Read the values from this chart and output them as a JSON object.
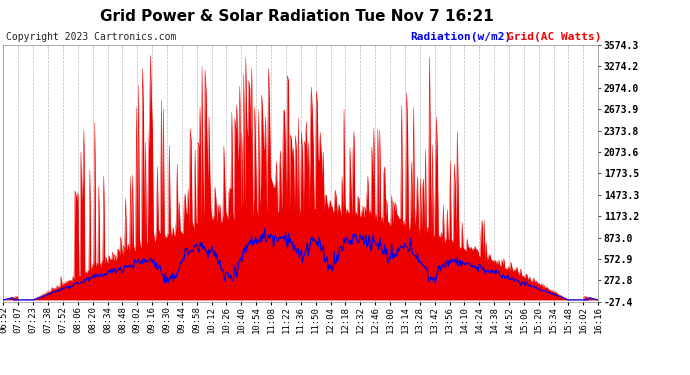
{
  "title": "Grid Power & Solar Radiation Tue Nov 7 16:21",
  "copyright": "Copyright 2023 Cartronics.com",
  "legend_radiation": "Radiation(w/m2)",
  "legend_grid": "Grid(AC Watts)",
  "ylabel_right_values": [
    3574.3,
    3274.2,
    2974.0,
    2673.9,
    2373.8,
    2073.6,
    1773.5,
    1473.3,
    1173.2,
    873.0,
    572.9,
    272.8,
    -27.4
  ],
  "ymin": -27.4,
  "ymax": 3574.3,
  "background_color": "#ffffff",
  "grid_color": "#bbbbbb",
  "radiation_color": "#0000ee",
  "grid_fill_color": "#ee0000",
  "title_fontsize": 11,
  "copyright_fontsize": 7,
  "tick_label_fontsize": 6.5,
  "x_tick_labels": [
    "06:52",
    "07:07",
    "07:23",
    "07:38",
    "07:52",
    "08:06",
    "08:20",
    "08:34",
    "08:48",
    "09:02",
    "09:16",
    "09:30",
    "09:44",
    "09:58",
    "10:12",
    "10:26",
    "10:40",
    "10:54",
    "11:08",
    "11:22",
    "11:36",
    "11:50",
    "12:04",
    "12:18",
    "12:32",
    "12:46",
    "13:00",
    "13:14",
    "13:28",
    "13:42",
    "13:56",
    "14:10",
    "14:24",
    "14:38",
    "14:52",
    "15:06",
    "15:20",
    "15:34",
    "15:48",
    "16:02",
    "16:16"
  ]
}
